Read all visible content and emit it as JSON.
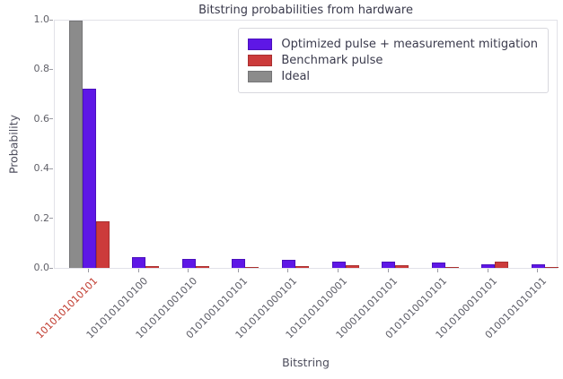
{
  "chart_data": {
    "type": "bar",
    "title": "Bitstring probabilities from hardware",
    "xlabel": "Bitstring",
    "ylabel": "Probability",
    "ylim": [
      0.0,
      1.0
    ],
    "yticks": [
      0.0,
      0.2,
      0.4,
      0.6,
      0.8,
      1.0
    ],
    "grid": false,
    "categories": [
      "1010101010101",
      "1010101010100",
      "1010101001010",
      "0101001010101",
      "1010101000101",
      "1010101010001",
      "1000101010101",
      "0101010010101",
      "1010100010101",
      "0100101010101"
    ],
    "highlighted_category_index": 0,
    "highlight_color": "#c03a2e",
    "tick_label_color": "#5c5c66",
    "series": [
      {
        "name": "Ideal",
        "color": "#8b8b8b",
        "edge_color": "#757577",
        "values": [
          1.0,
          0,
          0,
          0,
          0,
          0,
          0,
          0,
          0,
          0
        ]
      },
      {
        "name": "Optimized pulse + measurement mitigation",
        "color": "#5e17e6",
        "edge_color": "#4a10bd",
        "values": [
          0.725,
          0.045,
          0.036,
          0.036,
          0.032,
          0.027,
          0.026,
          0.021,
          0.016,
          0.013
        ]
      },
      {
        "name": "Benchmark pulse",
        "color": "#cc3b3b",
        "edge_color": "#a93030",
        "values": [
          0.19,
          0.007,
          0.008,
          0.005,
          0.008,
          0.012,
          0.011,
          0.005,
          0.027,
          0.005
        ]
      }
    ],
    "legend": {
      "position": "upper right",
      "order": [
        "Optimized pulse + measurement mitigation",
        "Benchmark pulse",
        "Ideal"
      ]
    }
  }
}
